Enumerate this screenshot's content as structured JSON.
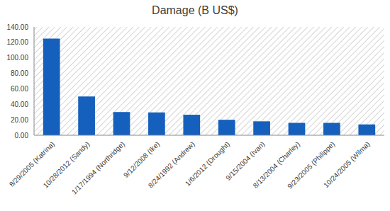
{
  "chart_data": {
    "type": "bar",
    "title": "Damage (B US$)",
    "categories": [
      "8/29/2005 (Katrina)",
      "10/28/2012 (Sandy)",
      "1/17/1994 (Northridge)",
      "9/12/2008 (Ike)",
      "8/24/1992 (Andrew)",
      "1/6/2012 (Drought)",
      "9/15/2004 (Ivan)",
      "8/13/2004 (Charley)",
      "9/23/2005 (Philippe)",
      "10/24/2005 (Wilma)"
    ],
    "values": [
      125,
      50,
      30,
      29.5,
      26.5,
      20,
      18,
      16,
      16,
      14
    ],
    "color": "#1560bd",
    "ylim": [
      0,
      140
    ],
    "yticks": [
      {
        "value": 0,
        "label": "0.00"
      },
      {
        "value": 20,
        "label": "20.00"
      },
      {
        "value": 40,
        "label": "40.00"
      },
      {
        "value": 60,
        "label": "60.00"
      },
      {
        "value": 80,
        "label": "80.00"
      },
      {
        "value": 100,
        "label": "100.00"
      },
      {
        "value": 120,
        "label": "120.00"
      },
      {
        "value": 140,
        "label": "140.00"
      }
    ],
    "grid": false
  }
}
